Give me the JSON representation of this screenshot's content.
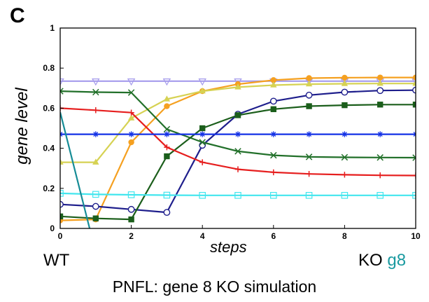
{
  "panel_label": "C",
  "under_left": "WT",
  "under_right_prefix": "KO ",
  "under_right_gene": "g8",
  "caption": "PNFL: gene 8 KO simulation",
  "chart_data": {
    "type": "line",
    "title": "",
    "xlabel": "steps",
    "ylabel": "gene level",
    "xlim": [
      0,
      10
    ],
    "ylim": [
      0,
      1
    ],
    "xticks": [
      0,
      2,
      4,
      6,
      8,
      10
    ],
    "yticks": [
      0,
      0.2,
      0.4,
      0.6,
      0.8,
      1
    ],
    "grid": false,
    "legend": "none",
    "x": [
      0,
      1,
      2,
      3,
      4,
      5,
      6,
      7,
      8,
      9,
      10
    ],
    "series": [
      {
        "color": "#a59bec",
        "marker": "triangle-down",
        "values": [
          0.735,
          0.735,
          0.735,
          0.735,
          0.735,
          0.735,
          0.735,
          0.735,
          0.735,
          0.735,
          0.735
        ]
      },
      {
        "color": "#f5a020",
        "marker": "filled-circle",
        "values": [
          0.04,
          0.045,
          0.43,
          0.61,
          0.685,
          0.72,
          0.74,
          0.75,
          0.752,
          0.753,
          0.753
        ]
      },
      {
        "color": "#d6d253",
        "marker": "filled-triangle",
        "values": [
          0.33,
          0.33,
          0.55,
          0.645,
          0.685,
          0.705,
          0.715,
          0.72,
          0.722,
          0.723,
          0.723
        ]
      },
      {
        "color": "#1e1e8c",
        "marker": "open-circle",
        "values": [
          0.12,
          0.11,
          0.095,
          0.08,
          0.415,
          0.57,
          0.635,
          0.665,
          0.68,
          0.688,
          0.69
        ]
      },
      {
        "color": "#22702a",
        "marker": "x",
        "values": [
          0.685,
          0.68,
          0.678,
          0.495,
          0.43,
          0.385,
          0.365,
          0.357,
          0.355,
          0.354,
          0.353
        ]
      },
      {
        "color": "#1b5e1b",
        "marker": "filled-square",
        "values": [
          0.06,
          0.05,
          0.045,
          0.36,
          0.5,
          0.565,
          0.595,
          0.61,
          0.615,
          0.618,
          0.618
        ]
      },
      {
        "color": "#e61e1e",
        "marker": "plus",
        "values": [
          0.6,
          0.59,
          0.578,
          0.405,
          0.33,
          0.295,
          0.28,
          0.272,
          0.268,
          0.265,
          0.264
        ]
      },
      {
        "color": "#1432e6",
        "marker": "star",
        "values": [
          0.47,
          0.47,
          0.47,
          0.47,
          0.47,
          0.47,
          0.47,
          0.47,
          0.47,
          0.47,
          0.47
        ]
      },
      {
        "color": "#42e6ee",
        "marker": "open-square",
        "values": [
          0.175,
          0.17,
          0.168,
          0.166,
          0.165,
          0.165,
          0.165,
          0.165,
          0.165,
          0.165,
          0.165
        ]
      },
      {
        "color": "#168c96",
        "marker": "none",
        "x": [
          0,
          0.9
        ],
        "values": [
          0.58,
          -0.05
        ]
      }
    ]
  }
}
